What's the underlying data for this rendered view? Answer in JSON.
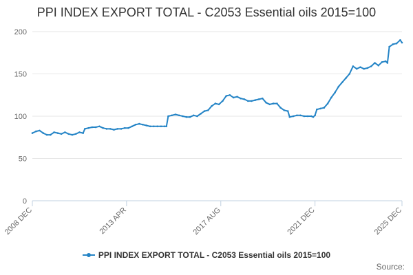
{
  "chart_data": {
    "type": "line",
    "title": "PPI INDEX EXPORT TOTAL - C2053 Essential oils 2015=100",
    "xlabel": "",
    "ylabel": "",
    "ylim": [
      0,
      200
    ],
    "yticks": [
      0,
      50,
      100,
      150,
      200
    ],
    "xlim": [
      "2008-12",
      "2025-12"
    ],
    "xtick_labels": [
      {
        "label": "2008 DEC",
        "date": "2008-12"
      },
      {
        "label": "2013 APR",
        "date": "2013-04"
      },
      {
        "label": "2017 AUG",
        "date": "2017-08"
      },
      {
        "label": "2021 DEC",
        "date": "2021-12"
      },
      {
        "label": "2025 DEC",
        "date": "2025-12"
      }
    ],
    "grid": "horizontal",
    "legend_position": "bottom",
    "series": [
      {
        "name": "PPI INDEX EXPORT TOTAL - C2053 Essential oils 2015=100",
        "color": "#2484c6",
        "points": [
          [
            "2008-12",
            80
          ],
          [
            "2009-02",
            82
          ],
          [
            "2009-04",
            83
          ],
          [
            "2009-06",
            80
          ],
          [
            "2009-08",
            78
          ],
          [
            "2009-10",
            78
          ],
          [
            "2009-12",
            81
          ],
          [
            "2010-02",
            80
          ],
          [
            "2010-04",
            79
          ],
          [
            "2010-06",
            81
          ],
          [
            "2010-08",
            79
          ],
          [
            "2010-10",
            78
          ],
          [
            "2010-12",
            79
          ],
          [
            "2011-02",
            81
          ],
          [
            "2011-04",
            80
          ],
          [
            "2011-05",
            85
          ],
          [
            "2011-07",
            86
          ],
          [
            "2011-09",
            87
          ],
          [
            "2011-11",
            87
          ],
          [
            "2012-01",
            88
          ],
          [
            "2012-03",
            86
          ],
          [
            "2012-05",
            85
          ],
          [
            "2012-07",
            85
          ],
          [
            "2012-09",
            84
          ],
          [
            "2012-11",
            85
          ],
          [
            "2013-01",
            85
          ],
          [
            "2013-03",
            86
          ],
          [
            "2013-05",
            86
          ],
          [
            "2013-07",
            88
          ],
          [
            "2013-09",
            90
          ],
          [
            "2013-11",
            91
          ],
          [
            "2014-01",
            90
          ],
          [
            "2014-03",
            89
          ],
          [
            "2014-05",
            88
          ],
          [
            "2014-07",
            88
          ],
          [
            "2014-09",
            88
          ],
          [
            "2014-11",
            88
          ],
          [
            "2015-01",
            88
          ],
          [
            "2015-02",
            88
          ],
          [
            "2015-03",
            100
          ],
          [
            "2015-05",
            101
          ],
          [
            "2015-07",
            102
          ],
          [
            "2015-09",
            101
          ],
          [
            "2015-11",
            100
          ],
          [
            "2016-01",
            99
          ],
          [
            "2016-03",
            99
          ],
          [
            "2016-05",
            101
          ],
          [
            "2016-07",
            100
          ],
          [
            "2016-09",
            103
          ],
          [
            "2016-11",
            106
          ],
          [
            "2017-01",
            107
          ],
          [
            "2017-03",
            112
          ],
          [
            "2017-05",
            115
          ],
          [
            "2017-07",
            114
          ],
          [
            "2017-09",
            118
          ],
          [
            "2017-11",
            124
          ],
          [
            "2018-01",
            125
          ],
          [
            "2018-03",
            122
          ],
          [
            "2018-05",
            123
          ],
          [
            "2018-07",
            121
          ],
          [
            "2018-09",
            120
          ],
          [
            "2018-11",
            118
          ],
          [
            "2019-01",
            118
          ],
          [
            "2019-03",
            119
          ],
          [
            "2019-05",
            120
          ],
          [
            "2019-07",
            121
          ],
          [
            "2019-09",
            116
          ],
          [
            "2019-11",
            114
          ],
          [
            "2020-01",
            115
          ],
          [
            "2020-03",
            115
          ],
          [
            "2020-05",
            110
          ],
          [
            "2020-07",
            107
          ],
          [
            "2020-09",
            106
          ],
          [
            "2020-10",
            99
          ],
          [
            "2020-12",
            100
          ],
          [
            "2021-02",
            101
          ],
          [
            "2021-04",
            101
          ],
          [
            "2021-06",
            100
          ],
          [
            "2021-08",
            100
          ],
          [
            "2021-10",
            100
          ],
          [
            "2021-11",
            99
          ],
          [
            "2021-12",
            101
          ],
          [
            "2022-01",
            108
          ],
          [
            "2022-03",
            109
          ],
          [
            "2022-05",
            110
          ],
          [
            "2022-07",
            115
          ],
          [
            "2022-09",
            122
          ],
          [
            "2022-11",
            128
          ],
          [
            "2023-01",
            135
          ],
          [
            "2023-03",
            140
          ],
          [
            "2023-05",
            145
          ],
          [
            "2023-07",
            150
          ],
          [
            "2023-09",
            159
          ],
          [
            "2023-11",
            156
          ],
          [
            "2024-01",
            158
          ],
          [
            "2024-03",
            156
          ],
          [
            "2024-05",
            157
          ],
          [
            "2024-07",
            159
          ],
          [
            "2024-09",
            163
          ],
          [
            "2024-11",
            160
          ],
          [
            "2025-01",
            164
          ],
          [
            "2025-03",
            165
          ],
          [
            "2025-04",
            163
          ],
          [
            "2025-05",
            182
          ],
          [
            "2025-07",
            185
          ],
          [
            "2025-09",
            186
          ],
          [
            "2025-11",
            190
          ],
          [
            "2025-12",
            187
          ]
        ]
      }
    ]
  },
  "source_label": "Source:"
}
